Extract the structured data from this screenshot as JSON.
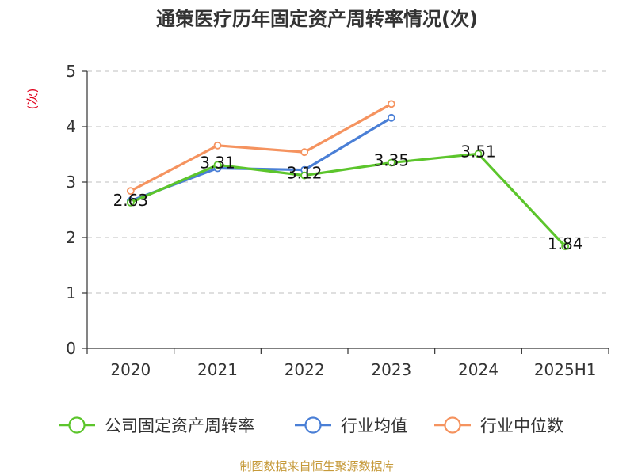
{
  "chart_data": {
    "type": "line",
    "title": "通策医疗历年固定资产周转率情况(次)",
    "ylabel": "(次)",
    "xlabel": "",
    "categories": [
      "2020",
      "2021",
      "2022",
      "2023",
      "2024",
      "2025H1"
    ],
    "ylim": [
      0,
      5
    ],
    "yticks": [
      0,
      1,
      2,
      3,
      4,
      5
    ],
    "grid": true,
    "legend_position": "bottom",
    "series": [
      {
        "name": "公司固定资产周转率",
        "values": [
          2.63,
          3.31,
          3.12,
          3.35,
          3.51,
          1.84
        ],
        "color": "#5cc52c",
        "show_labels": true
      },
      {
        "name": "行业均值",
        "values": [
          2.66,
          3.25,
          3.22,
          4.16,
          null,
          null
        ],
        "color": "#4a7fd6",
        "show_labels": false
      },
      {
        "name": "行业中位数",
        "values": [
          2.84,
          3.66,
          3.54,
          4.41,
          null,
          null
        ],
        "color": "#f5935f",
        "show_labels": false
      }
    ],
    "source": "制图数据来自恒生聚源数据库"
  }
}
